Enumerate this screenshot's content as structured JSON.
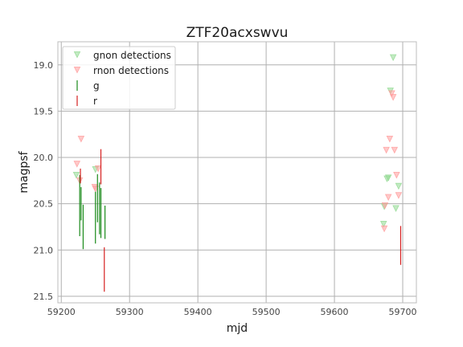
{
  "chart_data": {
    "type": "scatter",
    "title": "ZTF20acxswvu",
    "xlabel": "mjd",
    "ylabel": "magpsf",
    "xlim": [
      59195,
      59720
    ],
    "ylim": [
      21.57,
      18.75
    ],
    "y_inverted": true,
    "grid": true,
    "legend_placement": "top-left",
    "xticks": [
      "59200",
      "59300",
      "59400",
      "59500",
      "59600",
      "59700"
    ],
    "xtick_values": [
      59200,
      59300,
      59400,
      59500,
      59600,
      59700
    ],
    "yticks": [
      "19.0",
      "19.5",
      "20.0",
      "20.5",
      "21.0",
      "21.5"
    ],
    "ytick_values": [
      19.0,
      19.5,
      20.0,
      20.5,
      21.0,
      21.5
    ],
    "colors": {
      "g": "#1a8a1a",
      "r": "#d62020",
      "g_nondet": "#90d890",
      "r_nondet": "#ff9a9a",
      "grid": "#b0b0b0",
      "axes": "#bcbcbc"
    },
    "series": [
      {
        "name": "gnon detections",
        "kind": "nondetection",
        "color_key": "g_nondet",
        "points": [
          {
            "x": 59222,
            "y": 20.19
          },
          {
            "x": 59250,
            "y": 20.13
          },
          {
            "x": 59672,
            "y": 20.72
          },
          {
            "x": 59673,
            "y": 20.53
          },
          {
            "x": 59677,
            "y": 20.23
          },
          {
            "x": 59679,
            "y": 20.22
          },
          {
            "x": 59682,
            "y": 19.28
          },
          {
            "x": 59686,
            "y": 18.92
          },
          {
            "x": 59690,
            "y": 20.55
          },
          {
            "x": 59694,
            "y": 20.31
          }
        ]
      },
      {
        "name": "rnon detections",
        "kind": "nondetection",
        "color_key": "r_nondet",
        "points": [
          {
            "x": 59223,
            "y": 20.07
          },
          {
            "x": 59227,
            "y": 20.25
          },
          {
            "x": 59229,
            "y": 19.8
          },
          {
            "x": 59249,
            "y": 20.32
          },
          {
            "x": 59250,
            "y": 20.34
          },
          {
            "x": 59254,
            "y": 20.12
          },
          {
            "x": 59673,
            "y": 20.77
          },
          {
            "x": 59674,
            "y": 20.52
          },
          {
            "x": 59676,
            "y": 19.92
          },
          {
            "x": 59679,
            "y": 20.43
          },
          {
            "x": 59681,
            "y": 19.8
          },
          {
            "x": 59684,
            "y": 19.31
          },
          {
            "x": 59686,
            "y": 19.35
          },
          {
            "x": 59688,
            "y": 19.92
          },
          {
            "x": 59691,
            "y": 20.19
          },
          {
            "x": 59694,
            "y": 20.41
          }
        ]
      },
      {
        "name": "g",
        "kind": "detection",
        "color_key": "g",
        "points": [
          {
            "x": 59227,
            "y": 20.52,
            "err": 0.33
          },
          {
            "x": 59229,
            "y": 20.5,
            "err": 0.18
          },
          {
            "x": 59232,
            "y": 20.75,
            "err": 0.24
          },
          {
            "x": 59250,
            "y": 20.65,
            "err": 0.28
          },
          {
            "x": 59253,
            "y": 20.44,
            "err": 0.26
          },
          {
            "x": 59256,
            "y": 20.55,
            "err": 0.28
          },
          {
            "x": 59258,
            "y": 20.6,
            "err": 0.27
          },
          {
            "x": 59264,
            "y": 20.7,
            "err": 0.18
          }
        ]
      },
      {
        "name": "r",
        "kind": "detection",
        "color_key": "r",
        "points": [
          {
            "x": 59228,
            "y": 20.2,
            "err": 0.08
          },
          {
            "x": 59258,
            "y": 20.1,
            "err": 0.19
          },
          {
            "x": 59263,
            "y": 21.21,
            "err": 0.24
          },
          {
            "x": 59697,
            "y": 20.95,
            "err": 0.21
          }
        ]
      }
    ]
  }
}
